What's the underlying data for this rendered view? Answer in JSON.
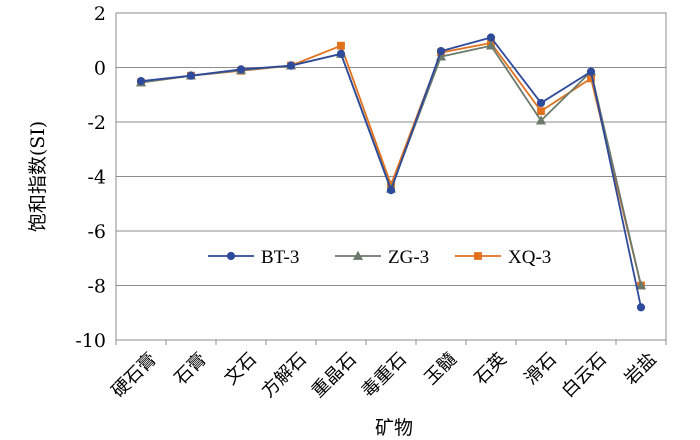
{
  "chart_data": {
    "type": "line",
    "title": "",
    "xlabel": "矿物",
    "ylabel": "饱和指数(SI)",
    "ylim": [
      -10,
      2
    ],
    "yticks": [
      2,
      0,
      -2,
      -4,
      -6,
      -8,
      -10
    ],
    "grid": true,
    "legend_position": "center",
    "categories": [
      "硬石膏",
      "石膏",
      "文石",
      "方解石",
      "重晶石",
      "毒重石",
      "玉髓",
      "石英",
      "滑石",
      "白云石",
      "岩盐"
    ],
    "series": [
      {
        "name": "BT-3",
        "color": "#2e4a9a",
        "marker": "circle",
        "values": [
          -0.5,
          -0.3,
          -0.07,
          0.07,
          0.5,
          -4.5,
          0.6,
          1.1,
          -1.3,
          -0.15,
          -8.8
        ]
      },
      {
        "name": "ZG-3",
        "color": "#6b7a6b",
        "marker": "triangle",
        "values": [
          -0.55,
          -0.3,
          -0.1,
          0.07,
          0.5,
          -4.45,
          0.4,
          0.8,
          -1.95,
          -0.15,
          -8.0
        ]
      },
      {
        "name": "XQ-3",
        "color": "#e2711d",
        "marker": "square",
        "values": [
          -0.55,
          -0.3,
          -0.12,
          0.07,
          0.8,
          -4.3,
          0.55,
          0.9,
          -1.6,
          -0.4,
          -8.0
        ]
      }
    ]
  }
}
